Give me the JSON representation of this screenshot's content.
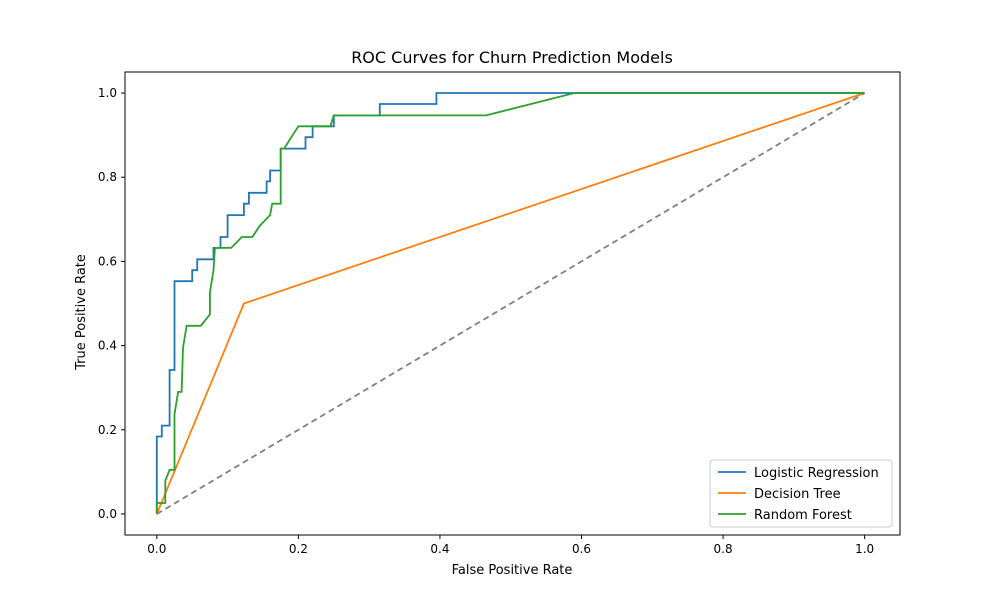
{
  "chart_data": {
    "type": "line",
    "title": "ROC Curves for Churn Prediction Models",
    "xlabel": "False Positive Rate",
    "ylabel": "True Positive Rate",
    "xlim": [
      -0.045,
      1.05
    ],
    "ylim": [
      -0.05,
      1.05
    ],
    "xticks": [
      0.0,
      0.2,
      0.4,
      0.6,
      0.8,
      1.0
    ],
    "yticks": [
      0.0,
      0.2,
      0.4,
      0.6,
      0.8,
      1.0
    ],
    "xtick_labels": [
      "0.0",
      "0.2",
      "0.4",
      "0.6",
      "0.8",
      "1.0"
    ],
    "ytick_labels": [
      "0.0",
      "0.2",
      "0.4",
      "0.6",
      "0.8",
      "1.0"
    ],
    "grid": false,
    "legend_position": "bottom-right",
    "series": [
      {
        "name": "Logistic Regression",
        "color": "#1f77b4",
        "x": [
          0.0,
          0.0,
          0.0,
          0.007,
          0.007,
          0.018,
          0.018,
          0.025,
          0.025,
          0.05,
          0.05,
          0.057,
          0.057,
          0.08,
          0.08,
          0.09,
          0.09,
          0.1,
          0.1,
          0.123,
          0.123,
          0.13,
          0.13,
          0.155,
          0.155,
          0.16,
          0.16,
          0.175,
          0.175,
          0.21,
          0.21,
          0.22,
          0.22,
          0.25,
          0.25,
          0.315,
          0.315,
          0.395,
          0.395,
          0.59,
          1.0
        ],
        "y": [
          0.0,
          0.026,
          0.184,
          0.184,
          0.21,
          0.21,
          0.342,
          0.342,
          0.553,
          0.553,
          0.579,
          0.579,
          0.605,
          0.605,
          0.632,
          0.632,
          0.658,
          0.658,
          0.71,
          0.71,
          0.737,
          0.737,
          0.763,
          0.763,
          0.79,
          0.79,
          0.816,
          0.816,
          0.868,
          0.868,
          0.895,
          0.895,
          0.921,
          0.921,
          0.947,
          0.947,
          0.974,
          0.974,
          1.0,
          1.0,
          1.0
        ]
      },
      {
        "name": "Decision Tree",
        "color": "#ff7f0e",
        "x": [
          0.0,
          0.123,
          1.0
        ],
        "y": [
          0.0,
          0.5,
          1.0
        ]
      },
      {
        "name": "Random Forest",
        "color": "#2ca02c",
        "x": [
          0.0,
          0.0,
          0.012,
          0.012,
          0.018,
          0.025,
          0.025,
          0.03,
          0.035,
          0.037,
          0.042,
          0.062,
          0.075,
          0.075,
          0.08,
          0.082,
          0.09,
          0.105,
          0.12,
          0.135,
          0.145,
          0.16,
          0.163,
          0.175,
          0.175,
          0.18,
          0.19,
          0.2,
          0.21,
          0.245,
          0.25,
          0.465,
          0.59,
          1.0
        ],
        "y": [
          0.0,
          0.026,
          0.026,
          0.079,
          0.105,
          0.105,
          0.237,
          0.29,
          0.29,
          0.395,
          0.447,
          0.447,
          0.474,
          0.526,
          0.579,
          0.632,
          0.632,
          0.632,
          0.658,
          0.658,
          0.684,
          0.71,
          0.737,
          0.737,
          0.868,
          0.868,
          0.895,
          0.921,
          0.921,
          0.921,
          0.947,
          0.947,
          1.0,
          1.0
        ]
      }
    ],
    "reference_line": {
      "x": [
        0.0,
        1.0
      ],
      "y": [
        0.0,
        1.0
      ],
      "color": "#808080",
      "style": "dashed"
    }
  }
}
